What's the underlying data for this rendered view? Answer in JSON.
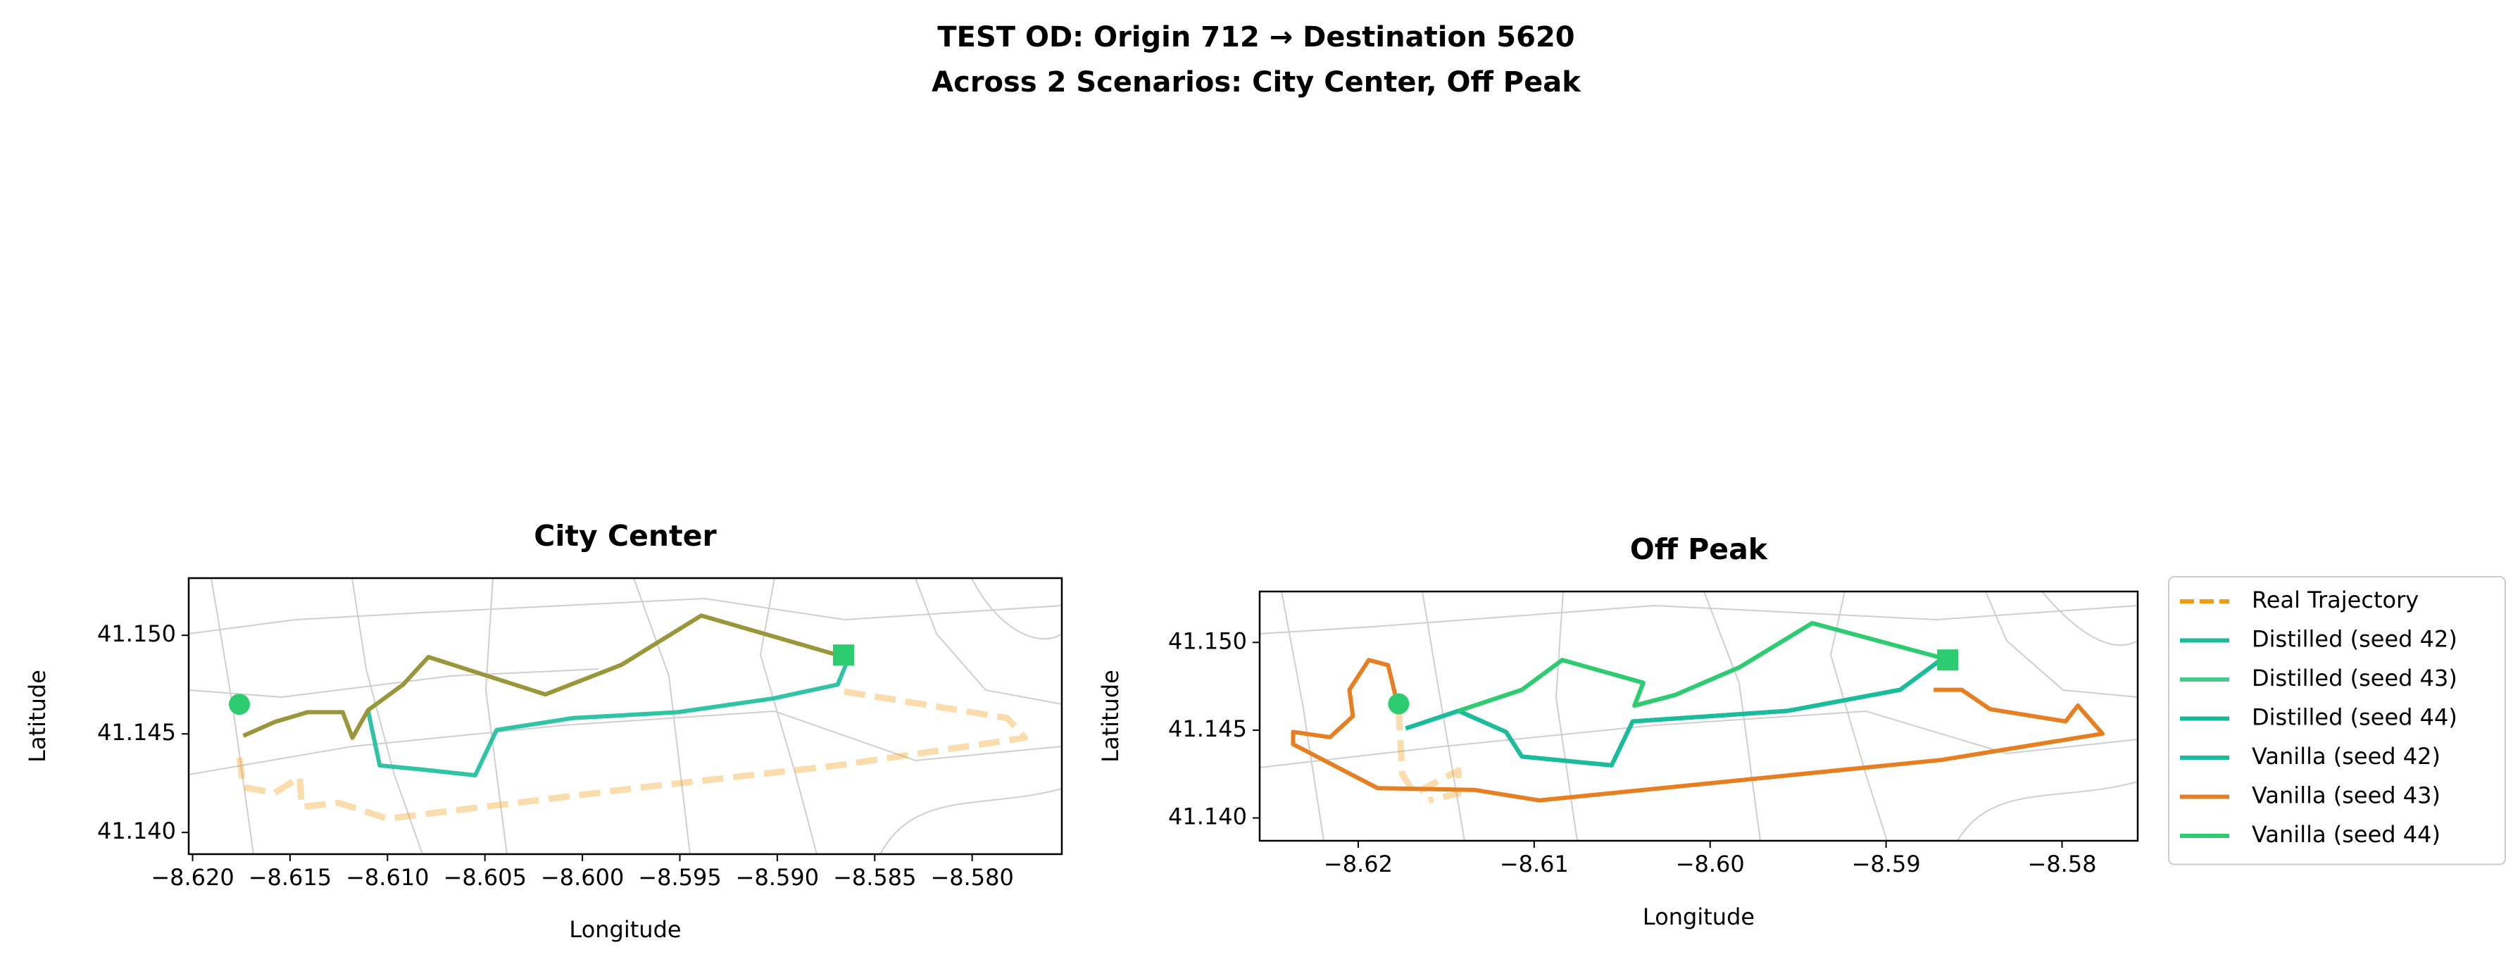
{
  "suptitle": [
    "TEST OD: Origin 712 → Destination 5620",
    "Across 2 Scenarios: City Center, Off Peak"
  ],
  "chart_data": [
    {
      "type": "line",
      "title": "City Center",
      "xlabel": "Longitude",
      "ylabel": "Latitude",
      "xlim": [
        -8.6202,
        -8.5754
      ],
      "ylim": [
        41.1389,
        41.1529
      ],
      "xticks": [
        {
          "value": -8.62,
          "label": "−8.620"
        },
        {
          "value": -8.615,
          "label": "−8.615"
        },
        {
          "value": -8.61,
          "label": "−8.610"
        },
        {
          "value": -8.605,
          "label": "−8.605"
        },
        {
          "value": -8.6,
          "label": "−8.600"
        },
        {
          "value": -8.595,
          "label": "−8.595"
        },
        {
          "value": -8.59,
          "label": "−8.590"
        },
        {
          "value": -8.585,
          "label": "−8.585"
        },
        {
          "value": -8.58,
          "label": "−8.580"
        }
      ],
      "yticks": [
        {
          "value": 41.14,
          "label": "41.140"
        },
        {
          "value": 41.145,
          "label": "41.145"
        },
        {
          "value": 41.15,
          "label": "41.150"
        }
      ],
      "origin": {
        "x": -8.6176,
        "y": 41.1465,
        "color": "#2ecc71"
      },
      "destination": {
        "x": -8.5866,
        "y": 41.149,
        "color": "#2ecc71"
      },
      "series": [
        {
          "color": "#f39c12",
          "opacity": 0.35,
          "linestyle": "dashed",
          "x": [
            -8.6176,
            -8.6174,
            -8.6158,
            -8.6145,
            -8.6144,
            -8.6125,
            -8.61,
            -8.5968,
            -8.5869,
            -8.5773,
            -8.5782,
            -8.5819,
            -8.5869
          ],
          "values": [
            41.1438,
            41.1423,
            41.142,
            41.1428,
            41.1413,
            41.1415,
            41.1407,
            41.1423,
            41.1434,
            41.1448,
            41.1458,
            41.1464,
            41.1472
          ]
        },
        {
          "color": "#1abc9c",
          "opacity": 0.9,
          "linestyle": "solid",
          "x": [
            -8.611,
            -8.6104,
            -8.6083,
            -8.6055,
            -8.6044,
            -8.6005,
            -8.5951,
            -8.5902,
            -8.5869,
            -8.5864
          ],
          "values": [
            41.1462,
            41.1434,
            41.1432,
            41.1429,
            41.1452,
            41.1458,
            41.1461,
            41.1468,
            41.1475,
            41.1487
          ]
        },
        {
          "color": "#9a963a",
          "opacity": 1,
          "linestyle": "solid",
          "x": [
            -8.6174,
            -8.6158,
            -8.6141,
            -8.6123,
            -8.6118,
            -8.611,
            -8.6092,
            -8.6079,
            -8.6019,
            -8.598,
            -8.5939,
            -8.5869
          ],
          "values": [
            41.1449,
            41.1456,
            41.1461,
            41.1461,
            41.1448,
            41.1462,
            41.1475,
            41.1489,
            41.147,
            41.1485,
            41.151,
            41.149
          ]
        }
      ]
    },
    {
      "type": "line",
      "title": "Off Peak",
      "xlabel": "Longitude",
      "ylabel": "Latitude",
      "legend": "outside-right",
      "xlim": [
        -8.6256,
        -8.5757
      ],
      "ylim": [
        41.1387,
        41.1529
      ],
      "xticks": [
        {
          "value": -8.62,
          "label": "−8.62"
        },
        {
          "value": -8.61,
          "label": "−8.61"
        },
        {
          "value": -8.6,
          "label": "−8.60"
        },
        {
          "value": -8.59,
          "label": "−8.59"
        },
        {
          "value": -8.58,
          "label": "−8.58"
        }
      ],
      "yticks": [
        {
          "value": 41.14,
          "label": "41.140"
        },
        {
          "value": 41.145,
          "label": "41.145"
        },
        {
          "value": 41.15,
          "label": "41.150"
        }
      ],
      "origin": {
        "x": -8.6177,
        "y": 41.1465,
        "color": "#2ecc71"
      },
      "destination": {
        "x": -8.5865,
        "y": 41.149,
        "color": "#2ecc71"
      },
      "series": [
        {
          "name": "Real Trajectory",
          "color": "#f39c12",
          "opacity": 0.35,
          "linestyle": "dashed",
          "x": [
            -8.6177,
            -8.6175,
            -8.6168,
            -8.6143,
            -8.6143,
            -8.616
          ],
          "values": [
            41.1462,
            41.1425,
            41.1414,
            41.1427,
            41.1414,
            41.141
          ]
        },
        {
          "name": "Distilled (seed 42)",
          "color": "#1abc9c",
          "opacity": 1,
          "linestyle": "solid",
          "x": [
            -8.6173,
            -8.6143,
            -8.6116,
            -8.6107,
            -8.6056,
            -8.6044,
            -8.5956,
            -8.5892,
            -8.5869
          ],
          "values": [
            41.1451,
            41.1461,
            41.1449,
            41.1435,
            41.143,
            41.1455,
            41.1461,
            41.1473,
            41.149
          ]
        },
        {
          "name": "Distilled (seed 43)",
          "color": "#48c98a",
          "opacity": 1,
          "linestyle": "solid",
          "x": [
            -8.6143,
            -8.6107,
            -8.6084,
            -8.6038,
            -8.6043,
            -8.602,
            -8.5983,
            -8.5942,
            -8.5864
          ],
          "values": [
            41.1461,
            41.1473,
            41.149,
            41.1477,
            41.1464,
            41.147,
            41.1486,
            41.1511,
            41.149
          ]
        },
        {
          "name": "Distilled (seed 44)",
          "color": "#17b897",
          "opacity": 1,
          "linestyle": "solid",
          "x": [
            -8.6173,
            -8.6143,
            -8.6116,
            -8.6107,
            -8.6056,
            -8.6044,
            -8.5956,
            -8.5892,
            -8.5869
          ],
          "values": [
            41.1451,
            41.1461,
            41.1449,
            41.1435,
            41.143,
            41.1455,
            41.1461,
            41.1473,
            41.149
          ]
        },
        {
          "name": "Vanilla (seed 42)",
          "color": "#1abc9c",
          "opacity": 1,
          "linestyle": "solid",
          "x": [
            -8.6173,
            -8.6143,
            -8.6116,
            -8.6107,
            -8.6056,
            -8.6044,
            -8.5956,
            -8.5892,
            -8.5869
          ],
          "values": [
            41.1451,
            41.1461,
            41.1449,
            41.1435,
            41.143,
            41.1455,
            41.1461,
            41.1473,
            41.149
          ]
        },
        {
          "name": "Vanilla (seed 43)",
          "color": "#e67e22",
          "opacity": 1,
          "linestyle": "solid",
          "x": [
            -8.6177,
            -8.6183,
            -8.6194,
            -8.6205,
            -8.6203,
            -8.6216,
            -8.6237,
            -8.6237,
            -8.6189,
            -8.6134,
            -8.6097,
            -8.5869,
            -8.5777,
            -8.5791,
            -8.5798,
            -8.5841,
            -8.5857,
            -8.5873
          ],
          "values": [
            41.1462,
            41.1487,
            41.149,
            41.1473,
            41.1458,
            41.1446,
            41.1449,
            41.1442,
            41.1417,
            41.1416,
            41.141,
            41.1433,
            41.1448,
            41.1464,
            41.1455,
            41.1462,
            41.1473,
            41.1473
          ]
        },
        {
          "name": "Vanilla (seed 44)",
          "color": "#2ecc71",
          "opacity": 1,
          "linestyle": "solid",
          "x": [
            -8.6143,
            -8.6107,
            -8.6084,
            -8.6038,
            -8.6043,
            -8.602,
            -8.5983,
            -8.5942,
            -8.5864
          ],
          "values": [
            41.1461,
            41.1473,
            41.149,
            41.1477,
            41.1464,
            41.147,
            41.1486,
            41.1511,
            41.149
          ]
        }
      ]
    }
  ]
}
